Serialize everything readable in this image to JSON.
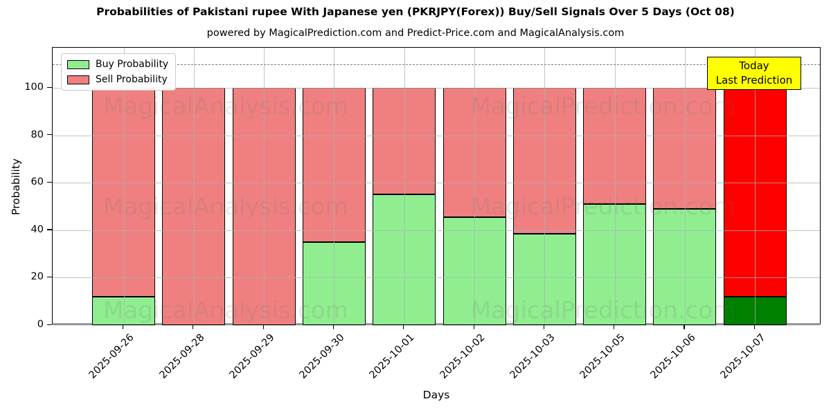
{
  "header": {
    "title": "Probabilities of Pakistani rupee With Japanese yen (PKRJPY(Forex)) Buy/Sell Signals Over 5 Days (Oct 08)",
    "subtitle": "powered by MagicalPrediction.com and Predict-Price.com and MagicalAnalysis.com"
  },
  "legend": {
    "items": [
      {
        "label": "Buy Probability",
        "color": "#90EE90"
      },
      {
        "label": "Sell Probability",
        "color": "#F08080"
      }
    ]
  },
  "annotation": {
    "line1": "Today",
    "line2": "Last Prediction",
    "bg_color": "#FFFF00"
  },
  "watermarks": {
    "left_text": "MagicalAnalysis.com",
    "right_text": "MagicalPrediction.com"
  },
  "chart_data": {
    "type": "bar",
    "stacked": true,
    "title": "Probabilities of Pakistani rupee With Japanese yen (PKRJPY(Forex)) Buy/Sell Signals Over 5 Days (Oct 08)",
    "xlabel": "Days",
    "ylabel": "Probability",
    "categories": [
      "2025-09-26",
      "2025-09-28",
      "2025-09-29",
      "2025-09-30",
      "2025-10-01",
      "2025-10-02",
      "2025-10-03",
      "2025-10-05",
      "2025-10-06",
      "2025-10-07"
    ],
    "series": [
      {
        "name": "Buy Probability",
        "color": "#90EE90",
        "today_color": "#008000",
        "values": [
          12,
          0,
          0,
          35,
          55,
          45.5,
          38.5,
          51,
          49,
          12
        ]
      },
      {
        "name": "Sell Probability",
        "color": "#F08080",
        "today_color": "#FF0000",
        "values": [
          88,
          100,
          100,
          65,
          45,
          54.5,
          61.5,
          49,
          51,
          88
        ]
      }
    ],
    "today_index": 9,
    "yticks": [
      0,
      20,
      40,
      60,
      80,
      100
    ],
    "ylim": [
      0,
      117
    ],
    "dashed_line_y": 110,
    "grid": true,
    "legend_position": "upper left"
  }
}
